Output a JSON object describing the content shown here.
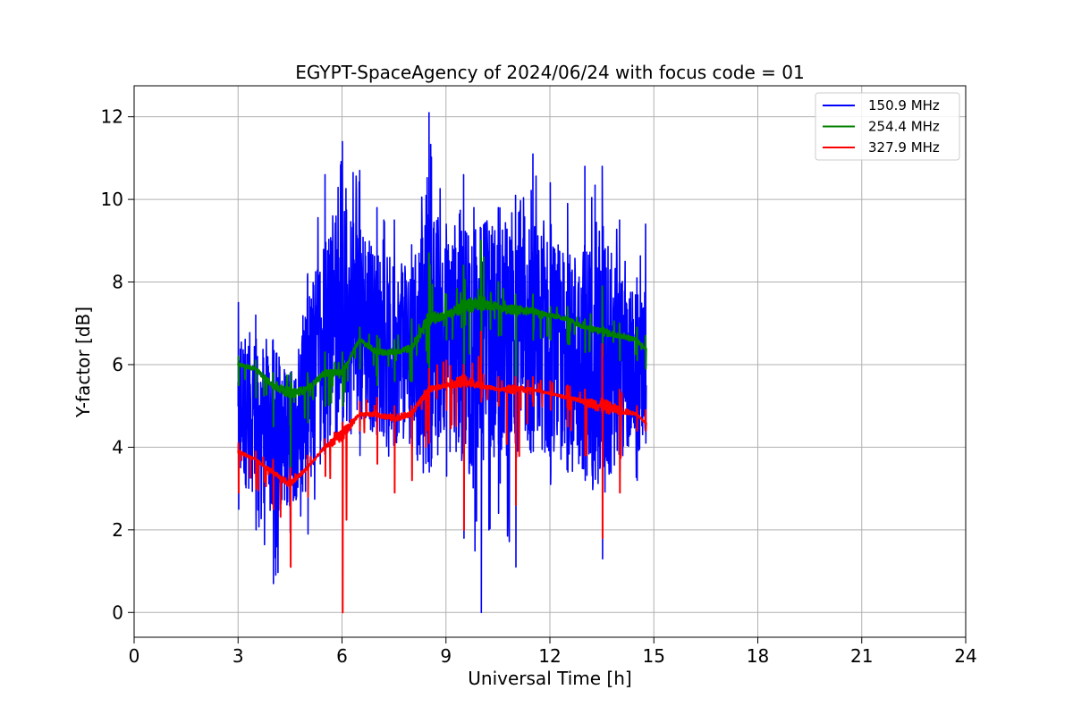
{
  "chart_data": {
    "type": "line",
    "title": "EGYPT-SpaceAgency of 2024/06/24 with focus code = 01",
    "xlabel": "Universal Time [h]",
    "ylabel": "Y-factor [dB]",
    "xlim": [
      0,
      24
    ],
    "ylim": [
      -0.6,
      12.75
    ],
    "xticks": [
      0,
      3,
      6,
      9,
      12,
      15,
      18,
      21,
      24
    ],
    "yticks": [
      0,
      2,
      4,
      6,
      8,
      10,
      12
    ],
    "grid": true,
    "legend_position": "top-right",
    "series": [
      {
        "name": "150.9 MHz",
        "color": "#0000ff",
        "x": [
          3.0,
          3.5,
          4.0,
          4.5,
          5.0,
          5.5,
          6.0,
          6.5,
          7.0,
          7.5,
          8.0,
          8.5,
          9.0,
          9.5,
          10.0,
          10.5,
          11.0,
          11.5,
          12.0,
          12.5,
          13.0,
          13.5,
          14.0,
          14.5,
          14.75
        ],
        "mid": [
          5.0,
          4.8,
          4.3,
          4.2,
          5.3,
          6.5,
          7.2,
          6.9,
          6.6,
          6.3,
          6.3,
          6.6,
          6.8,
          6.6,
          6.7,
          6.6,
          6.6,
          6.8,
          6.4,
          6.3,
          6.2,
          6.1,
          6.0,
          5.9,
          5.5
        ],
        "low": [
          2.5,
          2.0,
          0.7,
          1.5,
          1.9,
          3.3,
          3.5,
          3.8,
          3.6,
          3.6,
          3.3,
          3.4,
          3.3,
          1.8,
          0.0,
          2.4,
          1.1,
          3.9,
          3.1,
          3.4,
          3.2,
          1.3,
          3.4,
          3.2,
          4.1
        ],
        "high": [
          7.5,
          7.2,
          6.6,
          5.8,
          8.2,
          10.6,
          11.4,
          10.7,
          9.8,
          9.5,
          8.9,
          12.1,
          9.4,
          10.6,
          9.3,
          9.8,
          10.1,
          11.1,
          10.4,
          9.9,
          10.8,
          10.8,
          9.5,
          8.1,
          9.4
        ]
      },
      {
        "name": "254.4 MHz",
        "color": "#008000",
        "x": [
          3.0,
          3.5,
          4.0,
          4.5,
          5.0,
          5.5,
          6.0,
          6.5,
          7.0,
          7.5,
          8.0,
          8.5,
          9.0,
          9.5,
          10.0,
          10.5,
          11.0,
          11.5,
          12.0,
          12.5,
          13.0,
          13.5,
          14.0,
          14.5,
          14.75
        ],
        "mid": [
          6.0,
          5.9,
          5.5,
          5.3,
          5.4,
          5.8,
          5.8,
          6.6,
          6.3,
          6.3,
          6.4,
          7.1,
          7.2,
          7.4,
          7.5,
          7.4,
          7.3,
          7.3,
          7.2,
          7.1,
          6.9,
          6.8,
          6.7,
          6.6,
          6.4
        ],
        "low": [
          5.5,
          5.2,
          4.5,
          3.5,
          4.6,
          5.0,
          5.0,
          5.9,
          5.5,
          5.6,
          5.6,
          5.6,
          6.6,
          5.5,
          6.0,
          6.7,
          5.1,
          6.6,
          6.6,
          6.5,
          6.3,
          6.2,
          6.1,
          6.1,
          5.9
        ],
        "high": [
          6.2,
          6.1,
          5.8,
          5.8,
          5.8,
          6.3,
          6.3,
          6.9,
          6.7,
          6.6,
          7.1,
          8.7,
          7.7,
          8.4,
          9.0,
          8.0,
          7.7,
          7.7,
          7.4,
          7.4,
          7.1,
          7.9,
          7.0,
          6.9,
          6.7
        ]
      },
      {
        "name": "327.9 MHz",
        "color": "#ff0000",
        "x": [
          3.0,
          3.5,
          4.0,
          4.5,
          5.0,
          5.5,
          6.0,
          6.5,
          7.0,
          7.5,
          8.0,
          8.5,
          9.0,
          9.5,
          10.0,
          10.5,
          11.0,
          11.5,
          12.0,
          12.5,
          13.0,
          13.5,
          14.0,
          14.5,
          14.75
        ],
        "mid": [
          3.9,
          3.7,
          3.4,
          3.1,
          3.5,
          4.0,
          4.3,
          4.8,
          4.8,
          4.7,
          4.8,
          5.4,
          5.5,
          5.6,
          5.5,
          5.4,
          5.4,
          5.4,
          5.3,
          5.2,
          5.1,
          5.0,
          4.9,
          4.8,
          4.6
        ],
        "low": [
          2.9,
          3.0,
          2.5,
          1.1,
          2.8,
          3.3,
          0.0,
          4.4,
          3.6,
          2.9,
          3.2,
          4.1,
          4.9,
          2.0,
          5.1,
          5.0,
          2.6,
          5.0,
          4.9,
          4.5,
          3.8,
          1.8,
          2.9,
          4.4,
          4.4
        ],
        "high": [
          4.1,
          3.9,
          3.7,
          3.5,
          3.8,
          4.2,
          4.6,
          5.1,
          5.2,
          5.0,
          5.0,
          5.9,
          6.1,
          6.0,
          6.8,
          5.7,
          5.7,
          5.7,
          5.6,
          5.5,
          5.4,
          6.5,
          5.4,
          5.0,
          4.9
        ]
      }
    ]
  }
}
